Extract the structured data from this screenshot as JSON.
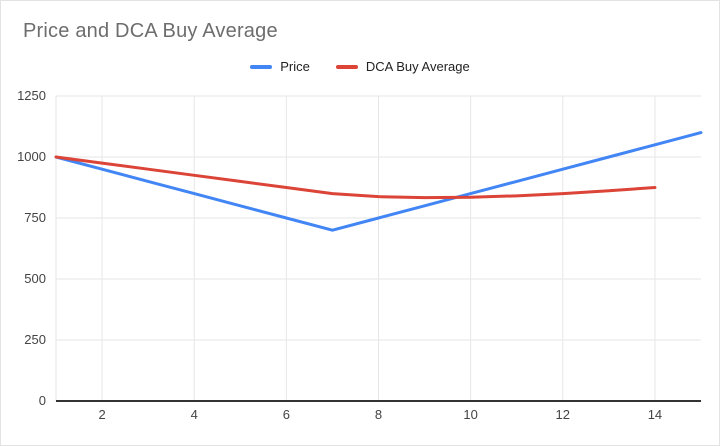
{
  "chart": {
    "title": "Price and DCA Buy Average"
  },
  "chart_data": {
    "type": "line",
    "title": "Price and DCA Buy Average",
    "xlabel": "",
    "ylabel": "",
    "xlim": [
      1,
      15
    ],
    "ylim": [
      0,
      1250
    ],
    "x_ticks": [
      2,
      4,
      6,
      8,
      10,
      12,
      14
    ],
    "y_ticks": [
      0,
      250,
      500,
      750,
      1000,
      1250
    ],
    "grid": true,
    "legend_position": "top-center",
    "series": [
      {
        "name": "Price",
        "color": "#4285F4",
        "x": [
          1,
          2,
          3,
          4,
          5,
          6,
          7,
          8,
          9,
          10,
          11,
          12,
          13,
          14,
          15
        ],
        "values": [
          1000,
          950,
          900,
          850,
          800,
          750,
          700,
          750,
          800,
          850,
          900,
          950,
          1000,
          1050,
          1100
        ]
      },
      {
        "name": "DCA Buy Average",
        "color": "#DB4437",
        "x": [
          1,
          2,
          3,
          4,
          5,
          6,
          7,
          8,
          9,
          10,
          11,
          12,
          13,
          14
        ],
        "values": [
          1000,
          975,
          950,
          925,
          900,
          875,
          850,
          837.5,
          833.3,
          835,
          840.9,
          850,
          861.5,
          875
        ]
      }
    ],
    "axis_label_color": "#444444",
    "gridline_color": "#e6e6e6",
    "baseline_color": "#333333"
  }
}
